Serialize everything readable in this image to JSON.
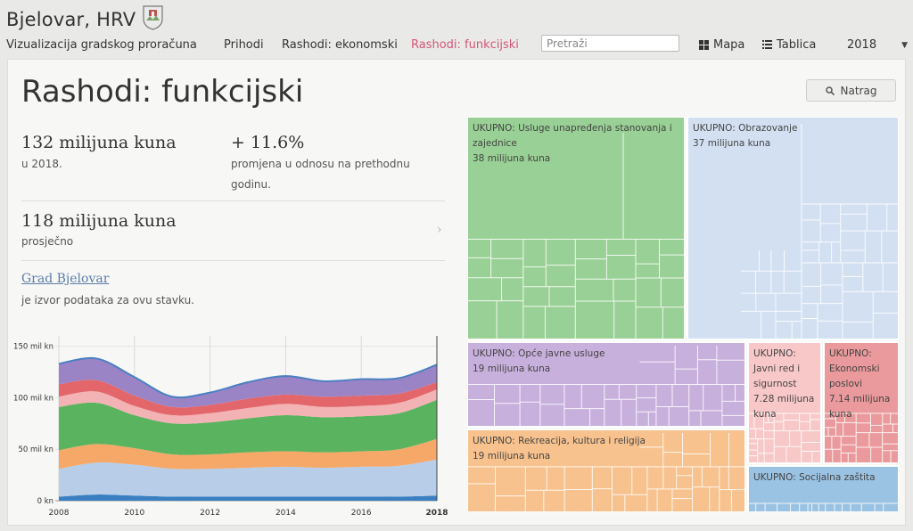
{
  "header": {
    "city": "Bjelovar, HRV",
    "subtitle": "Vizualizacija gradskog proračuna",
    "nav": [
      "Prihodi",
      "Rashodi: ekonomski",
      "Rashodi: funkcijski"
    ],
    "active_nav": "Rashodi: funkcijski",
    "search_placeholder": "Pretraži",
    "view_map": "Mapa",
    "view_table": "Tablica",
    "year": "2018"
  },
  "page": {
    "title": "Rashodi: funkcijski",
    "back_label": "Natrag",
    "total_value": "132 milijuna kuna",
    "total_caption": "u 2018.",
    "change_value": "+ 11.6%",
    "change_caption_1": "promjena u odnosu na prethodnu",
    "change_caption_2": "godinu.",
    "avg_value": "118 milijuna kuna",
    "avg_caption": "prosječno",
    "source_name": "Grad Bjelovar",
    "source_caption": "je izvor podataka za ovu stavku."
  },
  "colors": {
    "housing": "#99d095",
    "education": "#d3e0f1",
    "public": "#c8b0dc",
    "order": "#f8c8c9",
    "economic": "#ea9a9c",
    "recreation": "#f8c28e",
    "social": "#9ac2e2",
    "active_nav": "#d4567a",
    "link": "#5a7da8"
  },
  "chart_data": {
    "type": "area",
    "x": [
      2008,
      2009,
      2010,
      2011,
      2012,
      2013,
      2014,
      2015,
      2016,
      2017,
      2018
    ],
    "x_ticks": [
      "2008",
      "2010",
      "2012",
      "2014",
      "2016",
      "2018"
    ],
    "y_ticks": [
      "0 kn",
      "50 mil kn",
      "100 mil kn",
      "150 mil kn"
    ],
    "ylim": [
      0,
      160
    ],
    "stacked": true,
    "series": [
      {
        "color": "#3a7fc1",
        "values": [
          4,
          6,
          5,
          4,
          4,
          4,
          4,
          4,
          4,
          4,
          5
        ]
      },
      {
        "color": "#b7cde8",
        "values": [
          27,
          31,
          30,
          27,
          27,
          28,
          29,
          28,
          29,
          30,
          35
        ]
      },
      {
        "color": "#f5a867",
        "values": [
          18,
          18,
          16,
          14,
          14,
          15,
          15,
          15,
          15,
          16,
          20
        ]
      },
      {
        "color": "#5ab35e",
        "values": [
          42,
          40,
          32,
          30,
          31,
          33,
          35,
          34,
          34,
          35,
          38
        ]
      },
      {
        "color": "#f3b2b4",
        "values": [
          10,
          11,
          9,
          8,
          9,
          10,
          11,
          10,
          10,
          10,
          10
        ]
      },
      {
        "color": "#e3666a",
        "values": [
          12,
          11,
          10,
          8,
          8,
          9,
          9,
          10,
          10,
          9,
          7
        ]
      },
      {
        "color": "#9b84c6",
        "values": [
          20,
          21,
          18,
          10,
          12,
          16,
          18,
          15,
          16,
          15,
          17
        ]
      }
    ]
  },
  "treemap": {
    "blocks": [
      {
        "key": "housing",
        "label": "UKUPNO: Usluge unapređenja stanovanja i zajednice",
        "value": "38 milijuna kuna"
      },
      {
        "key": "education",
        "label": "UKUPNO: Obrazovanje",
        "value": "37 milijuna kuna"
      },
      {
        "key": "public",
        "label": "UKUPNO: Opće javne usluge",
        "value": "19 milijuna kuna"
      },
      {
        "key": "order",
        "label": "UKUPNO: Javni red i sigurnost",
        "value": "7.28 milijuna kuna"
      },
      {
        "key": "economic",
        "label": "UKUPNO: Ekonomski poslovi",
        "value": "7.14 milijuna kuna"
      },
      {
        "key": "recreation",
        "label": "UKUPNO: Rekreacija, kultura i religija",
        "value": "19 milijuna kuna"
      },
      {
        "key": "social",
        "label": "UKUPNO: Socijalna zaštita",
        "value": ""
      }
    ]
  }
}
